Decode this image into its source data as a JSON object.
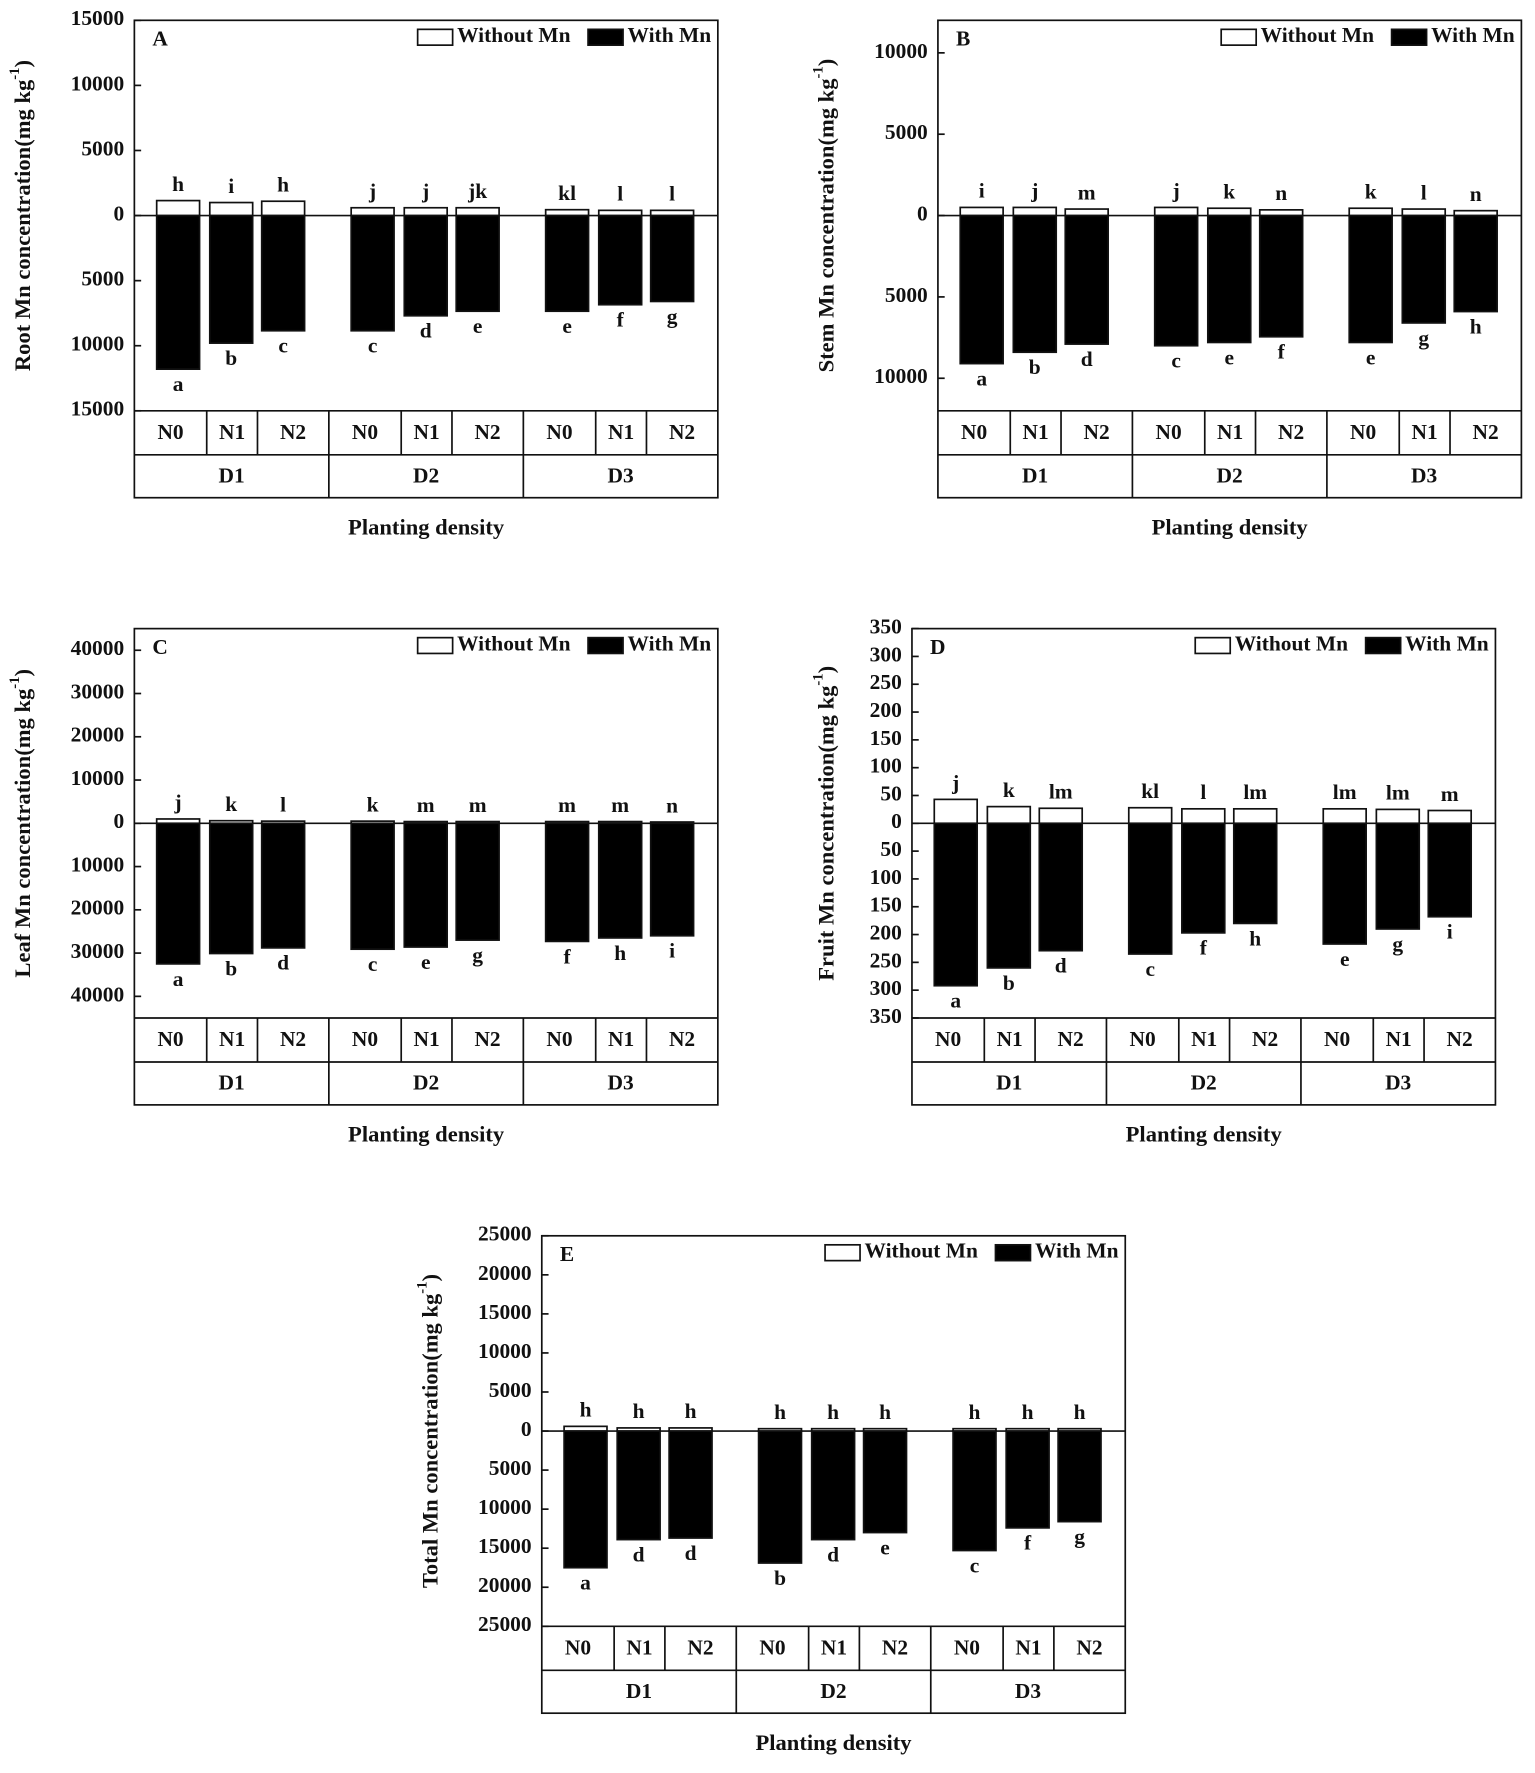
{
  "chart_data": [
    {
      "type": "bar",
      "panel": "A",
      "ylabel": [
        "Root Mn concentration(mg kg",
        "-1",
        ")"
      ],
      "xlabel": "Planting density",
      "categories": [
        "N0",
        "N1",
        "N2",
        "N0",
        "N1",
        "N2",
        "N0",
        "N1",
        "N2"
      ],
      "groups": [
        "D1",
        "D2",
        "D3"
      ],
      "ylim": [
        -15000,
        15000
      ],
      "yticks": [
        15000,
        10000,
        5000,
        0,
        {
          "value": -5000,
          "label": "5000"
        },
        {
          "value": -10000,
          "label": "10000"
        },
        {
          "value": -15000,
          "label": "15000"
        }
      ],
      "legend": "upper right",
      "series": [
        {
          "name": "Without Mn",
          "color": "#ffffff",
          "values": [
            1150,
            1000,
            1100,
            600,
            600,
            600,
            450,
            400,
            400
          ],
          "letters": [
            "h",
            "i",
            "h",
            "j",
            "j",
            "jk",
            "kl",
            "l",
            "l"
          ]
        },
        {
          "name": "With Mn",
          "color": "#000000",
          "values": [
            -11800,
            -9800,
            -8850,
            -8850,
            -7700,
            -7350,
            -7350,
            -6850,
            -6600
          ],
          "letters": [
            "a",
            "b",
            "c",
            "c",
            "d",
            "e",
            "e",
            "f",
            "g"
          ]
        }
      ]
    },
    {
      "type": "bar",
      "panel": "B",
      "ylabel": [
        "Stem Mn concentration(mg kg",
        "-1",
        ")"
      ],
      "xlabel": "Planting density",
      "categories": [
        "N0",
        "N1",
        "N2",
        "N0",
        "N1",
        "N2",
        "N0",
        "N1",
        "N2"
      ],
      "groups": [
        "D1",
        "D2",
        "D3"
      ],
      "ylim": [
        -12000,
        12000
      ],
      "yticks": [
        10000,
        5000,
        0,
        {
          "value": -5000,
          "label": "5000"
        },
        {
          "value": -10000,
          "label": "10000"
        }
      ],
      "legend": "upper right",
      "series": [
        {
          "name": "Without Mn",
          "color": "#ffffff",
          "values": [
            500,
            500,
            400,
            500,
            450,
            350,
            450,
            400,
            300
          ],
          "letters": [
            "i",
            "j",
            "m",
            "j",
            "k",
            "n",
            "k",
            "l",
            "n"
          ]
        },
        {
          "name": "With Mn",
          "color": "#000000",
          "values": [
            -9100,
            -8400,
            -7900,
            -8000,
            -7800,
            -7450,
            -7800,
            -6600,
            -5900
          ],
          "letters": [
            "a",
            "b",
            "d",
            "c",
            "e",
            "f",
            "e",
            "g",
            "h"
          ]
        }
      ]
    },
    {
      "type": "bar",
      "panel": "C",
      "ylabel": [
        "Leaf Mn concentration(mg kg",
        "-1",
        ")"
      ],
      "xlabel": "Planting density",
      "categories": [
        "N0",
        "N1",
        "N2",
        "N0",
        "N1",
        "N2",
        "N0",
        "N1",
        "N2"
      ],
      "groups": [
        "D1",
        "D2",
        "D3"
      ],
      "ylim": [
        -45000,
        45000
      ],
      "yticks": [
        40000,
        30000,
        20000,
        10000,
        0,
        {
          "value": -10000,
          "label": "10000"
        },
        {
          "value": -20000,
          "label": "20000"
        },
        {
          "value": -30000,
          "label": "30000"
        },
        {
          "value": -40000,
          "label": "40000"
        }
      ],
      "legend": "upper right",
      "series": [
        {
          "name": "Without Mn",
          "color": "#ffffff",
          "values": [
            1000,
            600,
            500,
            500,
            400,
            400,
            400,
            400,
            300
          ],
          "letters": [
            "j",
            "k",
            "l",
            "k",
            "m",
            "m",
            "m",
            "m",
            "n"
          ]
        },
        {
          "name": "With Mn",
          "color": "#000000",
          "values": [
            -32500,
            -30100,
            -28800,
            -29100,
            -28600,
            -27000,
            -27300,
            -26500,
            -26000
          ],
          "letters": [
            "a",
            "b",
            "d",
            "c",
            "e",
            "g",
            "f",
            "h",
            "i"
          ]
        }
      ]
    },
    {
      "type": "bar",
      "panel": "D",
      "ylabel": [
        "Fruit Mn concentration(mg kg",
        "-1",
        ")"
      ],
      "xlabel": "Planting density",
      "categories": [
        "N0",
        "N1",
        "N2",
        "N0",
        "N1",
        "N2",
        "N0",
        "N1",
        "N2"
      ],
      "groups": [
        "D1",
        "D2",
        "D3"
      ],
      "ylim": [
        -350,
        350
      ],
      "yticks": [
        350,
        300,
        250,
        200,
        150,
        100,
        50,
        0,
        {
          "value": -50,
          "label": "50"
        },
        {
          "value": -100,
          "label": "100"
        },
        {
          "value": -150,
          "label": "150"
        },
        {
          "value": -200,
          "label": "200"
        },
        {
          "value": -250,
          "label": "250"
        },
        {
          "value": -300,
          "label": "300"
        },
        {
          "value": -350,
          "label": "350"
        }
      ],
      "legend": "upper right",
      "series": [
        {
          "name": "Without Mn",
          "color": "#ffffff",
          "values": [
            43,
            30,
            27,
            28,
            26,
            26,
            26,
            25,
            23
          ],
          "letters": [
            "j",
            "k",
            "lm",
            "kl",
            "l",
            "lm",
            "lm",
            "lm",
            "m"
          ]
        },
        {
          "name": "With Mn",
          "color": "#000000",
          "values": [
            -292,
            -260,
            -229,
            -235,
            -197,
            -180,
            -217,
            -190,
            -168
          ],
          "letters": [
            "a",
            "b",
            "d",
            "c",
            "f",
            "h",
            "e",
            "g",
            "i"
          ]
        }
      ]
    },
    {
      "type": "bar",
      "panel": "E",
      "ylabel": [
        "Total Mn concentration(mg kg",
        "-1",
        ")"
      ],
      "xlabel": "Planting density",
      "categories": [
        "N0",
        "N1",
        "N2",
        "N0",
        "N1",
        "N2",
        "N0",
        "N1",
        "N2"
      ],
      "groups": [
        "D1",
        "D2",
        "D3"
      ],
      "ylim": [
        -25000,
        25000
      ],
      "yticks": [
        25000,
        20000,
        15000,
        10000,
        5000,
        0,
        {
          "value": -5000,
          "label": "5000"
        },
        {
          "value": -10000,
          "label": "10000"
        },
        {
          "value": -15000,
          "label": "15000"
        },
        {
          "value": -20000,
          "label": "20000"
        },
        {
          "value": -25000,
          "label": "25000"
        }
      ],
      "legend": "upper right",
      "series": [
        {
          "name": "Without Mn",
          "color": "#ffffff",
          "values": [
            600,
            400,
            400,
            300,
            300,
            300,
            300,
            300,
            300
          ],
          "letters": [
            "h",
            "h",
            "h",
            "h",
            "h",
            "h",
            "h",
            "h",
            "h"
          ]
        },
        {
          "name": "With Mn",
          "color": "#000000",
          "values": [
            -17500,
            -13900,
            -13700,
            -16900,
            -13900,
            -13000,
            -15300,
            -12400,
            -11600
          ],
          "letters": [
            "a",
            "d",
            "d",
            "b",
            "d",
            "e",
            "c",
            "f",
            "g"
          ]
        }
      ]
    }
  ]
}
